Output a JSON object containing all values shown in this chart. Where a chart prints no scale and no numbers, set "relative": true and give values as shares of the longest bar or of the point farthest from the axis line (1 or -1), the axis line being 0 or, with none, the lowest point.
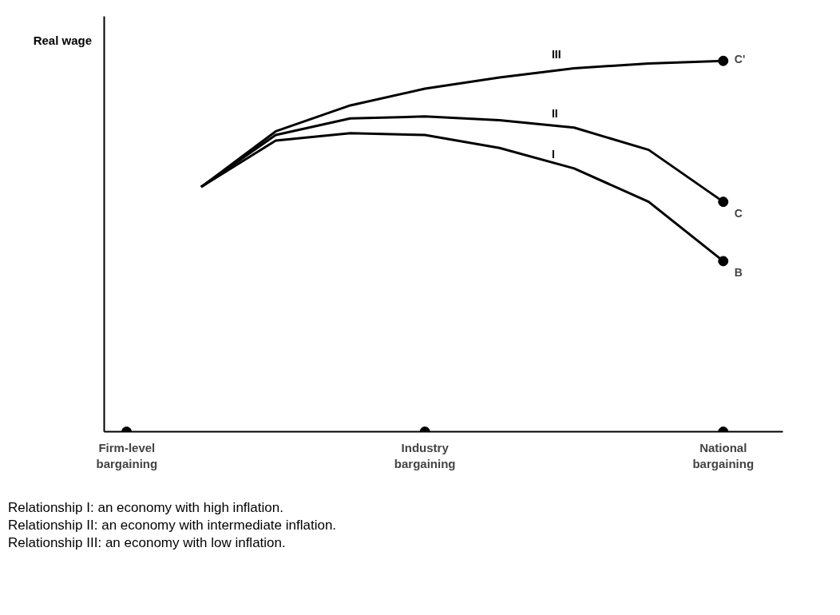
{
  "chart_data": {
    "type": "line",
    "relative": true,
    "ylabel": "Real wage",
    "categories": [
      "Firm-level bargaining",
      null,
      null,
      null,
      "Industry bargaining",
      null,
      null,
      null,
      "National bargaining"
    ],
    "series": [
      {
        "name": "III",
        "color": "#000000",
        "values": [
          null,
          0.66,
          0.81,
          0.88,
          0.925,
          0.955,
          0.98,
          0.993,
          1.0
        ]
      },
      {
        "name": "II",
        "color": "#000000",
        "values": [
          null,
          0.66,
          0.8,
          0.845,
          0.85,
          0.84,
          0.82,
          0.76,
          0.62
        ]
      },
      {
        "name": "I",
        "color": "#000000",
        "values": [
          null,
          0.66,
          0.785,
          0.805,
          0.8,
          0.765,
          0.71,
          0.62,
          0.46
        ]
      },
      {
        "type": "scatter",
        "color": "#000000",
        "values": [
          null,
          null,
          null,
          null,
          null,
          null,
          null,
          null,
          1.0
        ]
      },
      {
        "type": "scatter",
        "color": "#000000",
        "values": [
          null,
          null,
          null,
          null,
          null,
          null,
          null,
          null,
          0.62
        ]
      },
      {
        "type": "scatter",
        "color": "#000000",
        "values": [
          null,
          null,
          null,
          null,
          null,
          null,
          null,
          null,
          0.46
        ]
      },
      {
        "type": "scatter",
        "color": "#000000",
        "values": [
          0,
          null,
          null,
          null,
          0,
          null,
          null,
          null,
          0
        ]
      }
    ],
    "annotations": [
      {
        "text": "C'",
        "x": "National bargaining",
        "y": 1.0
      },
      {
        "text": "C",
        "x": "National bargaining",
        "y": 0.62
      },
      {
        "text": "B",
        "x": "National bargaining",
        "y": 0.46
      },
      "Relationship I: an economy with high inflation.",
      "Relationship II: an economy with intermediate inflation.",
      "Relationship III: an economy with low inflation."
    ],
    "grid": false,
    "legend": false,
    "line_style": "solid"
  }
}
